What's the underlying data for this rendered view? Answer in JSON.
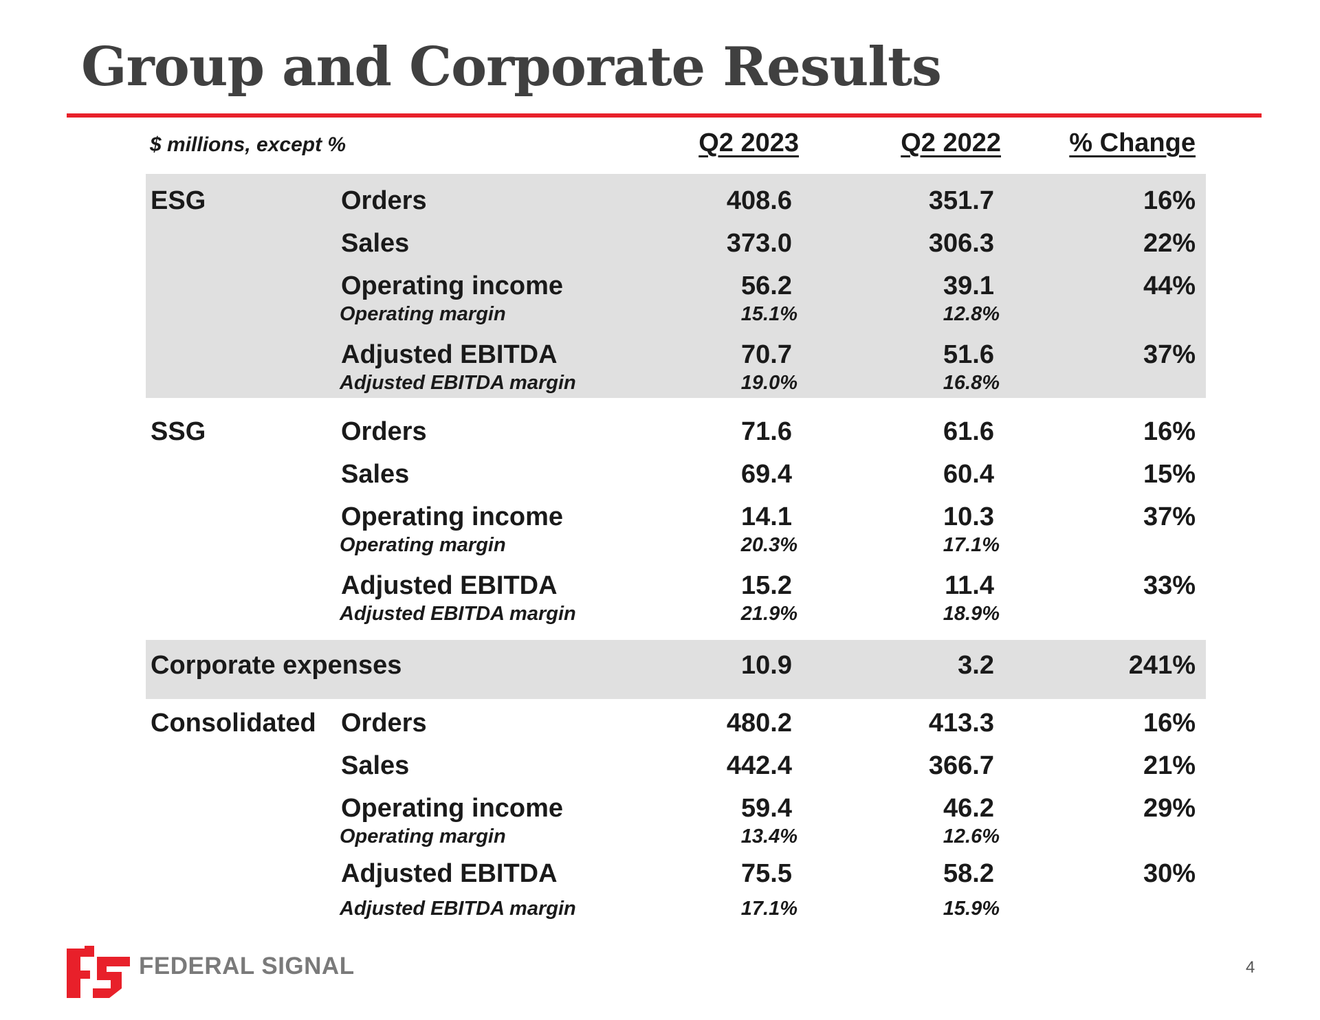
{
  "title": "Group and Corporate Results",
  "unit_note": "$ millions, except %",
  "columns": [
    "Q2 2023",
    "Q2 2022",
    "% Change"
  ],
  "segments": [
    {
      "name": "ESG",
      "shaded": true,
      "rows": [
        {
          "label": "Orders",
          "q2_2023": "408.6",
          "q2_2022": "351.7",
          "change": "16%"
        },
        {
          "label": "Sales",
          "q2_2023": "373.0",
          "q2_2022": "306.3",
          "change": "22%"
        },
        {
          "label": "Operating income",
          "q2_2023": "56.2",
          "q2_2022": "39.1",
          "change": "44%",
          "sub": {
            "label": "Operating margin",
            "q2_2023": "15.1%",
            "q2_2022": "12.8%"
          }
        },
        {
          "label": "Adjusted EBITDA",
          "q2_2023": "70.7",
          "q2_2022": "51.6",
          "change": "37%",
          "sub": {
            "label": "Adjusted EBITDA margin",
            "q2_2023": "19.0%",
            "q2_2022": "16.8%"
          }
        }
      ]
    },
    {
      "name": "SSG",
      "shaded": false,
      "rows": [
        {
          "label": "Orders",
          "q2_2023": "71.6",
          "q2_2022": "61.6",
          "change": "16%"
        },
        {
          "label": "Sales",
          "q2_2023": "69.4",
          "q2_2022": "60.4",
          "change": "15%"
        },
        {
          "label": "Operating income",
          "q2_2023": "14.1",
          "q2_2022": "10.3",
          "change": "37%",
          "sub": {
            "label": "Operating margin",
            "q2_2023": "20.3%",
            "q2_2022": "17.1%"
          }
        },
        {
          "label": "Adjusted EBITDA",
          "q2_2023": "15.2",
          "q2_2022": "11.4",
          "change": "33%",
          "sub": {
            "label": "Adjusted EBITDA margin",
            "q2_2023": "21.9%",
            "q2_2022": "18.9%"
          }
        }
      ]
    },
    {
      "name": "Corporate expenses",
      "shaded": true,
      "rows": [
        {
          "label": "",
          "q2_2023": "10.9",
          "q2_2022": "3.2",
          "change": "241%"
        }
      ]
    },
    {
      "name": "Consolidated",
      "shaded": false,
      "rows": [
        {
          "label": "Orders",
          "q2_2023": "480.2",
          "q2_2022": "413.3",
          "change": "16%"
        },
        {
          "label": "Sales",
          "q2_2023": "442.4",
          "q2_2022": "366.7",
          "change": "21%"
        },
        {
          "label": "Operating income",
          "q2_2023": "59.4",
          "q2_2022": "46.2",
          "change": "29%",
          "sub": {
            "label": "Operating margin",
            "q2_2023": "13.4%",
            "q2_2022": "12.6%"
          }
        },
        {
          "label": "Adjusted EBITDA",
          "q2_2023": "75.5",
          "q2_2022": "58.2",
          "change": "30%",
          "sub": {
            "label": "Adjusted EBITDA margin",
            "q2_2023": "17.1%",
            "q2_2022": "15.9%"
          }
        }
      ]
    }
  ],
  "logo": {
    "text": "FEDERAL SIGNAL",
    "icon": "federal-signal-logo-icon",
    "color": "#e8202a"
  },
  "page_number": "4",
  "colors": {
    "accent_rule": "#e8202a",
    "band": "#e0e0e0",
    "title": "#404040"
  }
}
